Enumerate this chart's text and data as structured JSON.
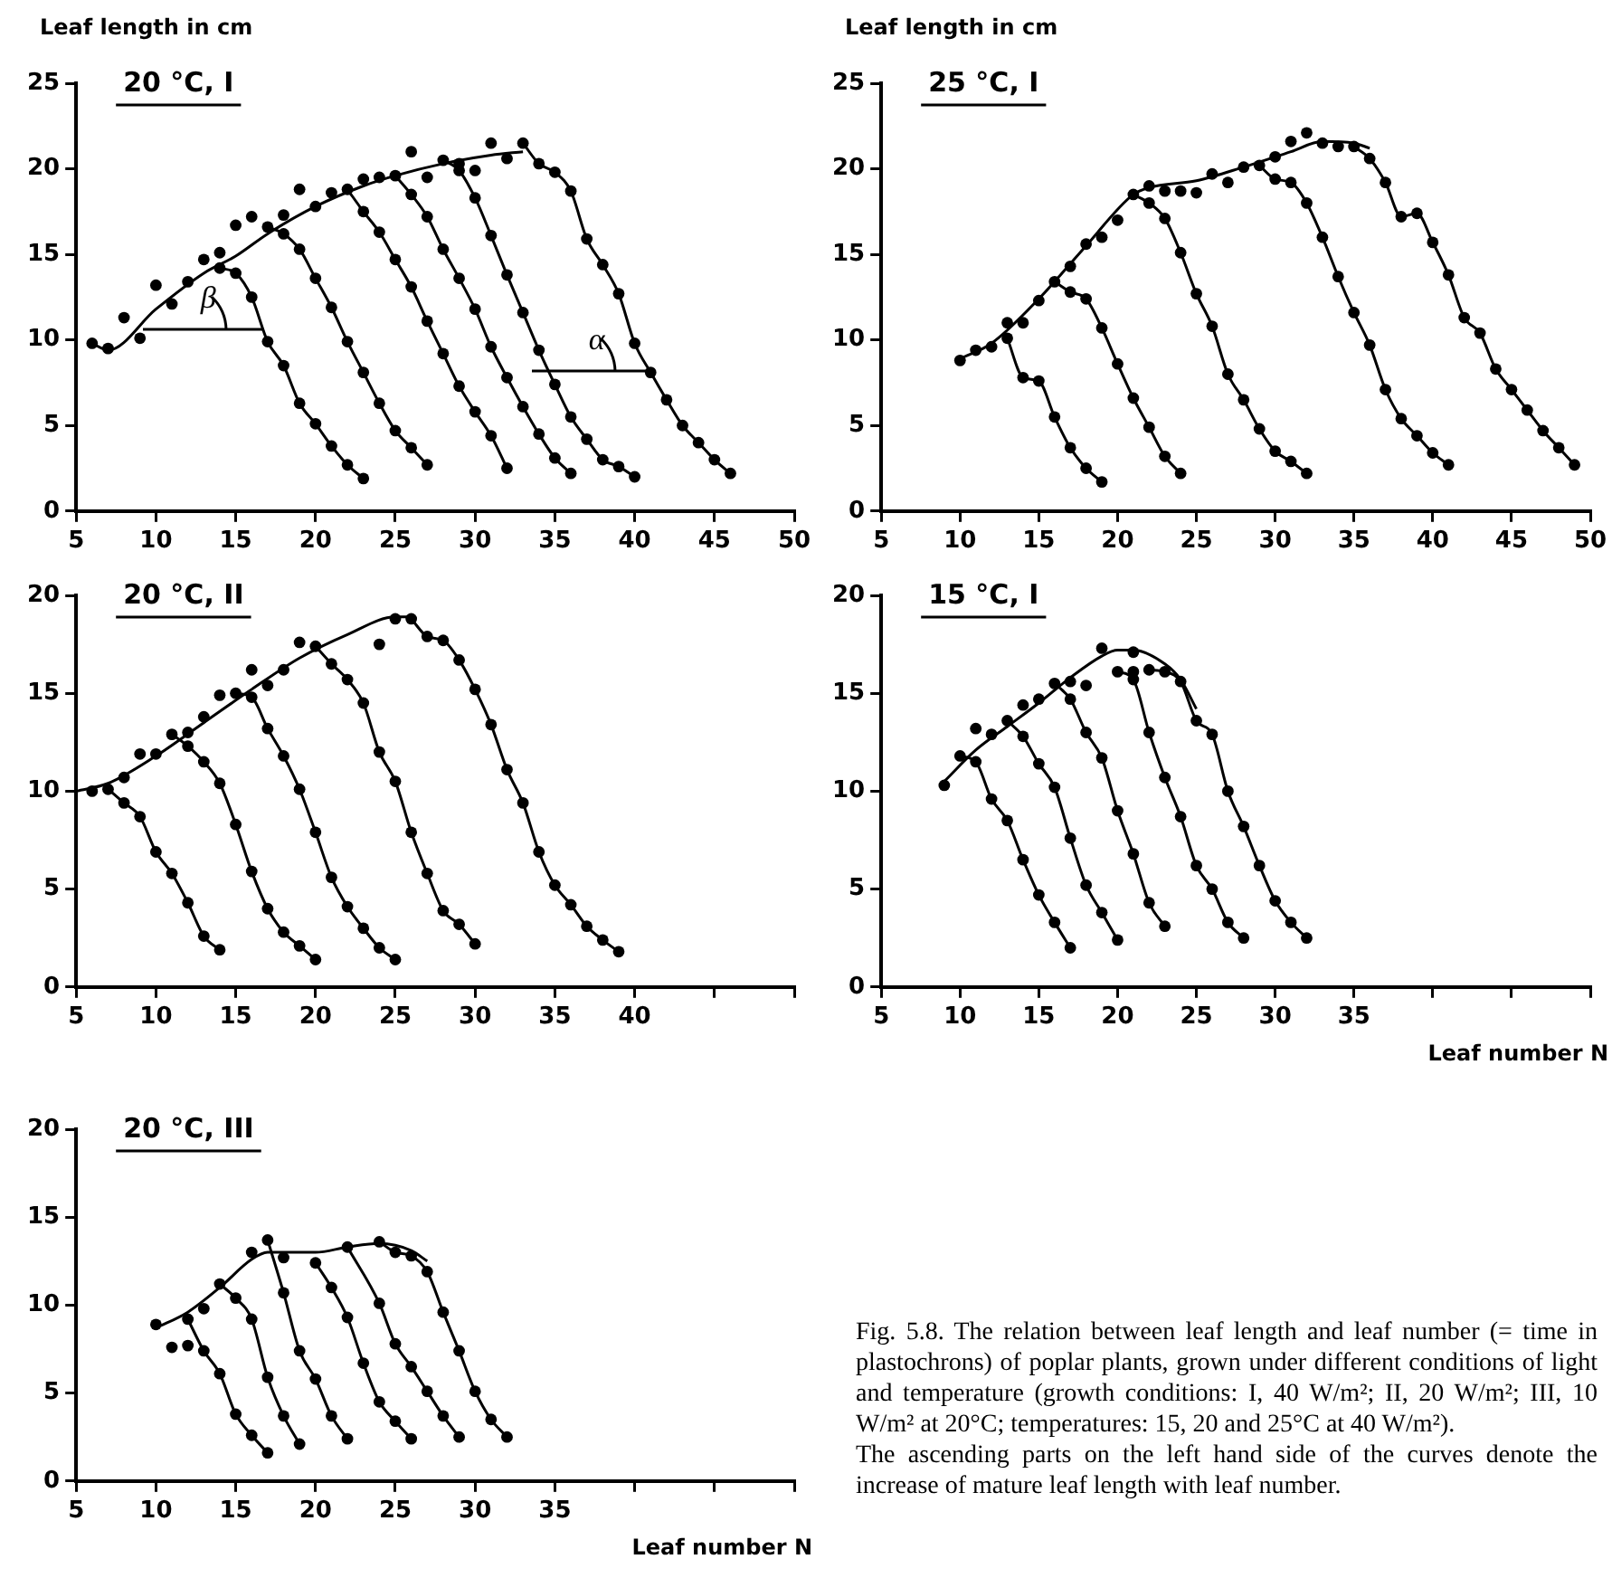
{
  "chart_data": [
    {
      "type": "line",
      "title": "20 °C, I",
      "ylabel": "Leaf length in cm",
      "marker": "circle",
      "xlim": [
        5,
        50
      ],
      "xticks": [
        5,
        10,
        15,
        20,
        25,
        30,
        35,
        40,
        45,
        50
      ],
      "ylim": [
        0,
        25
      ],
      "yticks": [
        0,
        5,
        10,
        15,
        20,
        25
      ],
      "annotations": [
        "β",
        "α"
      ],
      "series": [
        {
          "type": "scatter",
          "color": "#000000",
          "x": [
            6,
            7,
            8,
            9,
            10,
            11,
            12,
            13,
            14,
            15,
            16,
            18,
            19,
            20,
            21,
            23,
            24,
            26,
            27,
            29,
            30,
            31,
            32
          ],
          "values": [
            9.8,
            9.5,
            11.3,
            10.1,
            13.2,
            12.1,
            13.4,
            14.7,
            15.1,
            16.7,
            17.2,
            17.3,
            18.8,
            17.8,
            18.6,
            19.4,
            19.5,
            21.0,
            19.5,
            20.3,
            19.9,
            21.5,
            20.6
          ]
        },
        {
          "type": "line",
          "marker": "none",
          "color": "#000000",
          "x": [
            6,
            7,
            10,
            13,
            15,
            17,
            20,
            23,
            25,
            28,
            31,
            33
          ],
          "values": [
            9.8,
            9.4,
            11.8,
            13.9,
            14.9,
            16.2,
            17.8,
            19.0,
            19.6,
            20.3,
            20.8,
            21.0
          ]
        },
        {
          "type": "line",
          "color": "#000000",
          "x": [
            14,
            15,
            16,
            17,
            18,
            19,
            20,
            21,
            22,
            23
          ],
          "values": [
            14.2,
            13.9,
            12.5,
            9.9,
            8.5,
            6.3,
            5.1,
            3.8,
            2.7,
            1.9
          ]
        },
        {
          "type": "line",
          "color": "#000000",
          "x": [
            17,
            18,
            19,
            20,
            21,
            22,
            23,
            24,
            25,
            26,
            27
          ],
          "values": [
            16.6,
            16.2,
            15.3,
            13.6,
            11.9,
            9.9,
            8.1,
            6.3,
            4.7,
            3.7,
            2.7
          ]
        },
        {
          "type": "line",
          "color": "#000000",
          "x": [
            22,
            23,
            24,
            25,
            26,
            27,
            28,
            29,
            30,
            31,
            32
          ],
          "values": [
            18.8,
            17.5,
            16.3,
            14.7,
            13.1,
            11.1,
            9.2,
            7.3,
            5.8,
            4.4,
            2.5
          ]
        },
        {
          "type": "line",
          "color": "#000000",
          "x": [
            25,
            26,
            27,
            28,
            29,
            30,
            31,
            32,
            33,
            34,
            35,
            36
          ],
          "values": [
            19.6,
            18.5,
            17.2,
            15.3,
            13.6,
            11.8,
            9.6,
            7.8,
            6.1,
            4.5,
            3.1,
            2.2
          ]
        },
        {
          "type": "line",
          "color": "#000000",
          "x": [
            28,
            29,
            30,
            31,
            32,
            33,
            34,
            35,
            36,
            37,
            38,
            39,
            40
          ],
          "values": [
            20.5,
            19.9,
            18.3,
            16.1,
            13.8,
            11.6,
            9.4,
            7.4,
            5.5,
            4.2,
            3.0,
            2.6,
            2.0
          ]
        },
        {
          "type": "line",
          "color": "#000000",
          "x": [
            33,
            34,
            35,
            36,
            37,
            38,
            39,
            40,
            41,
            42,
            43,
            44,
            45,
            46
          ],
          "values": [
            21.5,
            20.3,
            19.8,
            18.7,
            15.9,
            14.4,
            12.7,
            9.8,
            8.1,
            6.5,
            5.0,
            4.0,
            3.0,
            2.2
          ]
        }
      ]
    },
    {
      "type": "line",
      "title": "25 °C, I",
      "ylabel": "Leaf length in cm",
      "marker": "circle",
      "xlim": [
        5,
        50
      ],
      "xticks": [
        5,
        10,
        15,
        20,
        25,
        30,
        35,
        40,
        45,
        50
      ],
      "ylim": [
        0,
        25
      ],
      "yticks": [
        0,
        5,
        10,
        15,
        20,
        25
      ],
      "series": [
        {
          "type": "scatter",
          "color": "#000000",
          "x": [
            10,
            11,
            12,
            13,
            14,
            15,
            17,
            18,
            19,
            20,
            22,
            23,
            24,
            25,
            26,
            27,
            28,
            30,
            31,
            32,
            33,
            34
          ],
          "values": [
            8.8,
            9.4,
            9.6,
            11.0,
            11.0,
            12.3,
            14.3,
            15.6,
            16.0,
            17.0,
            19.0,
            18.7,
            18.7,
            18.6,
            19.7,
            19.2,
            20.1,
            20.7,
            21.6,
            22.1,
            21.5,
            21.3
          ]
        },
        {
          "type": "line",
          "marker": "none",
          "color": "#000000",
          "x": [
            10,
            12,
            15,
            18,
            21,
            22,
            25,
            28,
            31,
            33,
            35,
            36
          ],
          "values": [
            8.9,
            9.8,
            12.4,
            15.5,
            18.5,
            18.9,
            19.3,
            20.1,
            21.0,
            21.6,
            21.5,
            21.2
          ]
        },
        {
          "type": "line",
          "color": "#000000",
          "x": [
            13,
            14,
            15,
            16,
            17,
            18,
            19
          ],
          "values": [
            10.1,
            7.8,
            7.6,
            5.5,
            3.7,
            2.5,
            1.7
          ]
        },
        {
          "type": "line",
          "color": "#000000",
          "x": [
            16,
            17,
            18,
            19,
            20,
            21,
            22,
            23,
            24
          ],
          "values": [
            13.4,
            12.8,
            12.4,
            10.7,
            8.6,
            6.6,
            4.9,
            3.2,
            2.2
          ]
        },
        {
          "type": "line",
          "color": "#000000",
          "x": [
            21,
            22,
            23,
            24,
            25,
            26,
            27,
            28,
            29,
            30,
            31,
            32
          ],
          "values": [
            18.5,
            18.0,
            17.1,
            15.1,
            12.7,
            10.8,
            8.0,
            6.5,
            4.8,
            3.5,
            2.9,
            2.2
          ]
        },
        {
          "type": "line",
          "color": "#000000",
          "x": [
            29,
            30,
            31,
            32,
            33,
            34,
            35,
            36,
            37,
            38,
            39,
            40,
            41
          ],
          "values": [
            20.2,
            19.4,
            19.2,
            18.0,
            16.0,
            13.7,
            11.6,
            9.7,
            7.1,
            5.4,
            4.4,
            3.4,
            2.7
          ]
        },
        {
          "type": "line",
          "color": "#000000",
          "x": [
            35,
            36,
            37,
            38,
            39,
            40,
            41,
            42,
            43,
            44,
            45,
            46,
            47,
            48,
            49
          ],
          "values": [
            21.3,
            20.6,
            19.2,
            17.2,
            17.4,
            15.7,
            13.8,
            11.3,
            10.4,
            8.3,
            7.1,
            5.9,
            4.7,
            3.7,
            2.7
          ]
        }
      ]
    },
    {
      "type": "line",
      "title": "20 °C, II",
      "marker": "circle",
      "xlim": [
        5,
        50
      ],
      "xticks": [
        5,
        10,
        15,
        20,
        25,
        30,
        35,
        40,
        {
          "value": 45,
          "label": null
        },
        {
          "value": 50,
          "label": null
        }
      ],
      "ylim": [
        0,
        20
      ],
      "yticks": [
        0,
        5,
        10,
        15,
        20
      ],
      "series": [
        {
          "type": "scatter",
          "color": "#000000",
          "x": [
            6,
            8,
            9,
            10,
            12,
            13,
            14,
            16,
            17,
            18,
            19,
            24,
            25
          ],
          "values": [
            10.0,
            10.7,
            11.9,
            11.9,
            13.0,
            13.8,
            14.9,
            16.2,
            15.4,
            16.2,
            17.6,
            17.5,
            18.8
          ]
        },
        {
          "type": "line",
          "marker": "none",
          "color": "#000000",
          "x": [
            5,
            7,
            10,
            13,
            16,
            19,
            22,
            25,
            26
          ],
          "values": [
            10.0,
            10.4,
            11.8,
            13.5,
            15.2,
            16.8,
            18.0,
            18.9,
            18.9
          ]
        },
        {
          "type": "line",
          "color": "#000000",
          "x": [
            7,
            8,
            9,
            10,
            11,
            12,
            13,
            14
          ],
          "values": [
            10.1,
            9.4,
            8.7,
            6.9,
            5.8,
            4.3,
            2.6,
            1.9
          ]
        },
        {
          "type": "line",
          "color": "#000000",
          "x": [
            11,
            12,
            13,
            14,
            15,
            16,
            17,
            18,
            19,
            20
          ],
          "values": [
            12.9,
            12.3,
            11.5,
            10.4,
            8.3,
            5.9,
            4.0,
            2.8,
            2.1,
            1.4
          ]
        },
        {
          "type": "line",
          "color": "#000000",
          "x": [
            15,
            16,
            17,
            18,
            19,
            20,
            21,
            22,
            23,
            24,
            25
          ],
          "values": [
            15.0,
            14.8,
            13.2,
            11.8,
            10.1,
            7.9,
            5.6,
            4.1,
            3.0,
            2.0,
            1.4
          ]
        },
        {
          "type": "line",
          "color": "#000000",
          "x": [
            20,
            21,
            22,
            23,
            24,
            25,
            26,
            27,
            28,
            29,
            30
          ],
          "values": [
            17.4,
            16.5,
            15.7,
            14.5,
            12.0,
            10.5,
            7.9,
            5.8,
            3.9,
            3.2,
            2.2
          ]
        },
        {
          "type": "line",
          "color": "#000000",
          "x": [
            26,
            27,
            28,
            29,
            30,
            31,
            32,
            33,
            34,
            35,
            36,
            37,
            38,
            39
          ],
          "values": [
            18.8,
            17.9,
            17.7,
            16.7,
            15.2,
            13.4,
            11.1,
            9.4,
            6.9,
            5.2,
            4.2,
            3.1,
            2.4,
            1.8
          ]
        }
      ]
    },
    {
      "type": "line",
      "title": "15 °C, I",
      "xlabel": "Leaf number N",
      "marker": "circle",
      "xlim": [
        5,
        50
      ],
      "xticks": [
        5,
        10,
        15,
        20,
        25,
        30,
        35,
        {
          "value": 40,
          "label": null
        },
        {
          "value": 45,
          "label": null
        },
        {
          "value": 50,
          "label": null
        }
      ],
      "ylim": [
        0,
        20
      ],
      "yticks": [
        0,
        5,
        10,
        15,
        20
      ],
      "series": [
        {
          "type": "scatter",
          "color": "#000000",
          "x": [
            9,
            11,
            12,
            14,
            15,
            17,
            18,
            19,
            21,
            21
          ],
          "values": [
            10.3,
            13.2,
            12.9,
            14.4,
            14.7,
            15.6,
            15.4,
            17.3,
            16.1,
            17.1
          ]
        },
        {
          "type": "line",
          "marker": "none",
          "color": "#000000",
          "x": [
            9,
            11,
            13,
            15,
            17,
            19,
            20,
            21,
            23,
            24,
            25
          ],
          "values": [
            10.5,
            12.1,
            13.3,
            14.5,
            15.8,
            16.9,
            17.2,
            17.2,
            16.5,
            15.7,
            14.2
          ]
        },
        {
          "type": "line",
          "color": "#000000",
          "x": [
            10,
            11,
            12,
            13,
            14,
            15,
            16,
            17
          ],
          "values": [
            11.8,
            11.5,
            9.6,
            8.5,
            6.5,
            4.7,
            3.3,
            2.0
          ]
        },
        {
          "type": "line",
          "color": "#000000",
          "x": [
            13,
            14,
            15,
            16,
            17,
            18,
            19,
            20
          ],
          "values": [
            13.6,
            12.8,
            11.4,
            10.2,
            7.6,
            5.2,
            3.8,
            2.4
          ]
        },
        {
          "type": "line",
          "color": "#000000",
          "x": [
            16,
            17,
            18,
            19,
            20,
            21,
            22,
            23
          ],
          "values": [
            15.5,
            14.7,
            13.0,
            11.7,
            9.0,
            6.8,
            4.3,
            3.1
          ]
        },
        {
          "type": "line",
          "color": "#000000",
          "x": [
            20,
            21,
            22,
            23,
            24,
            25,
            26,
            27,
            28
          ],
          "values": [
            16.1,
            15.7,
            13.0,
            10.7,
            8.7,
            6.2,
            5.0,
            3.3,
            2.5
          ]
        },
        {
          "type": "line",
          "color": "#000000",
          "x": [
            22,
            23,
            24,
            25,
            26,
            27,
            28,
            29,
            30,
            31,
            32
          ],
          "values": [
            16.2,
            16.1,
            15.6,
            13.6,
            12.9,
            10.0,
            8.2,
            6.2,
            4.4,
            3.3,
            2.5
          ]
        }
      ]
    },
    {
      "type": "line",
      "title": "20 °C, III",
      "xlabel": "Leaf number N",
      "marker": "circle",
      "xlim": [
        5,
        50
      ],
      "xticks": [
        5,
        10,
        15,
        20,
        25,
        30,
        35,
        {
          "value": 40,
          "label": null
        },
        {
          "value": 45,
          "label": null
        },
        {
          "value": 50,
          "label": null
        }
      ],
      "ylim": [
        0,
        20
      ],
      "yticks": [
        0,
        5,
        10,
        15,
        20
      ],
      "series": [
        {
          "type": "scatter",
          "color": "#000000",
          "x": [
            10,
            11,
            12,
            13,
            16,
            18
          ],
          "values": [
            8.9,
            7.6,
            7.7,
            9.8,
            13.0,
            12.7
          ]
        },
        {
          "type": "line",
          "marker": "none",
          "color": "#000000",
          "x": [
            10,
            12,
            14,
            16,
            17,
            20,
            22,
            24,
            26,
            27
          ],
          "values": [
            8.7,
            9.6,
            11.0,
            12.6,
            13.0,
            13.0,
            13.3,
            13.5,
            13.1,
            12.5
          ]
        },
        {
          "type": "line",
          "color": "#000000",
          "x": [
            12,
            13,
            14,
            15,
            16,
            17
          ],
          "values": [
            9.2,
            7.4,
            6.1,
            3.8,
            2.6,
            1.6
          ]
        },
        {
          "type": "line",
          "color": "#000000",
          "x": [
            14,
            15,
            16,
            17,
            18,
            19
          ],
          "values": [
            11.2,
            10.4,
            9.2,
            5.9,
            3.7,
            2.1
          ]
        },
        {
          "type": "line",
          "color": "#000000",
          "x": [
            17,
            18,
            19,
            20,
            21,
            22
          ],
          "values": [
            13.7,
            10.7,
            7.4,
            5.8,
            3.7,
            2.4
          ]
        },
        {
          "type": "line",
          "color": "#000000",
          "x": [
            20,
            21,
            22,
            23,
            24,
            25,
            26
          ],
          "values": [
            12.4,
            11.0,
            9.3,
            6.7,
            4.5,
            3.4,
            2.4
          ]
        },
        {
          "type": "line",
          "color": "#000000",
          "x": [
            22,
            24,
            25,
            26,
            27,
            28,
            29
          ],
          "values": [
            13.3,
            10.1,
            7.8,
            6.5,
            5.1,
            3.7,
            2.5
          ]
        },
        {
          "type": "line",
          "color": "#000000",
          "x": [
            24,
            25,
            26,
            27,
            28,
            29,
            30,
            31,
            32
          ],
          "values": [
            13.6,
            13.0,
            12.8,
            11.9,
            9.6,
            7.4,
            5.1,
            3.5,
            2.5
          ]
        }
      ]
    },
    {
      "type": "other",
      "annotations": [
        "Fig. 5.8. The relation between leaf length and leaf number (= time in plastochrons) of poplar plants, grown under different conditions of light and temperature (growth conditions: I, 40 W/m²; II, 20 W/m²; III, 10 W/m² at 20°C; temperatures: 15, 20 and 25°C at 40 W/m²).",
        "The ascending parts on the left hand side of the curves denote the increase of mature leaf length with leaf number."
      ]
    }
  ]
}
